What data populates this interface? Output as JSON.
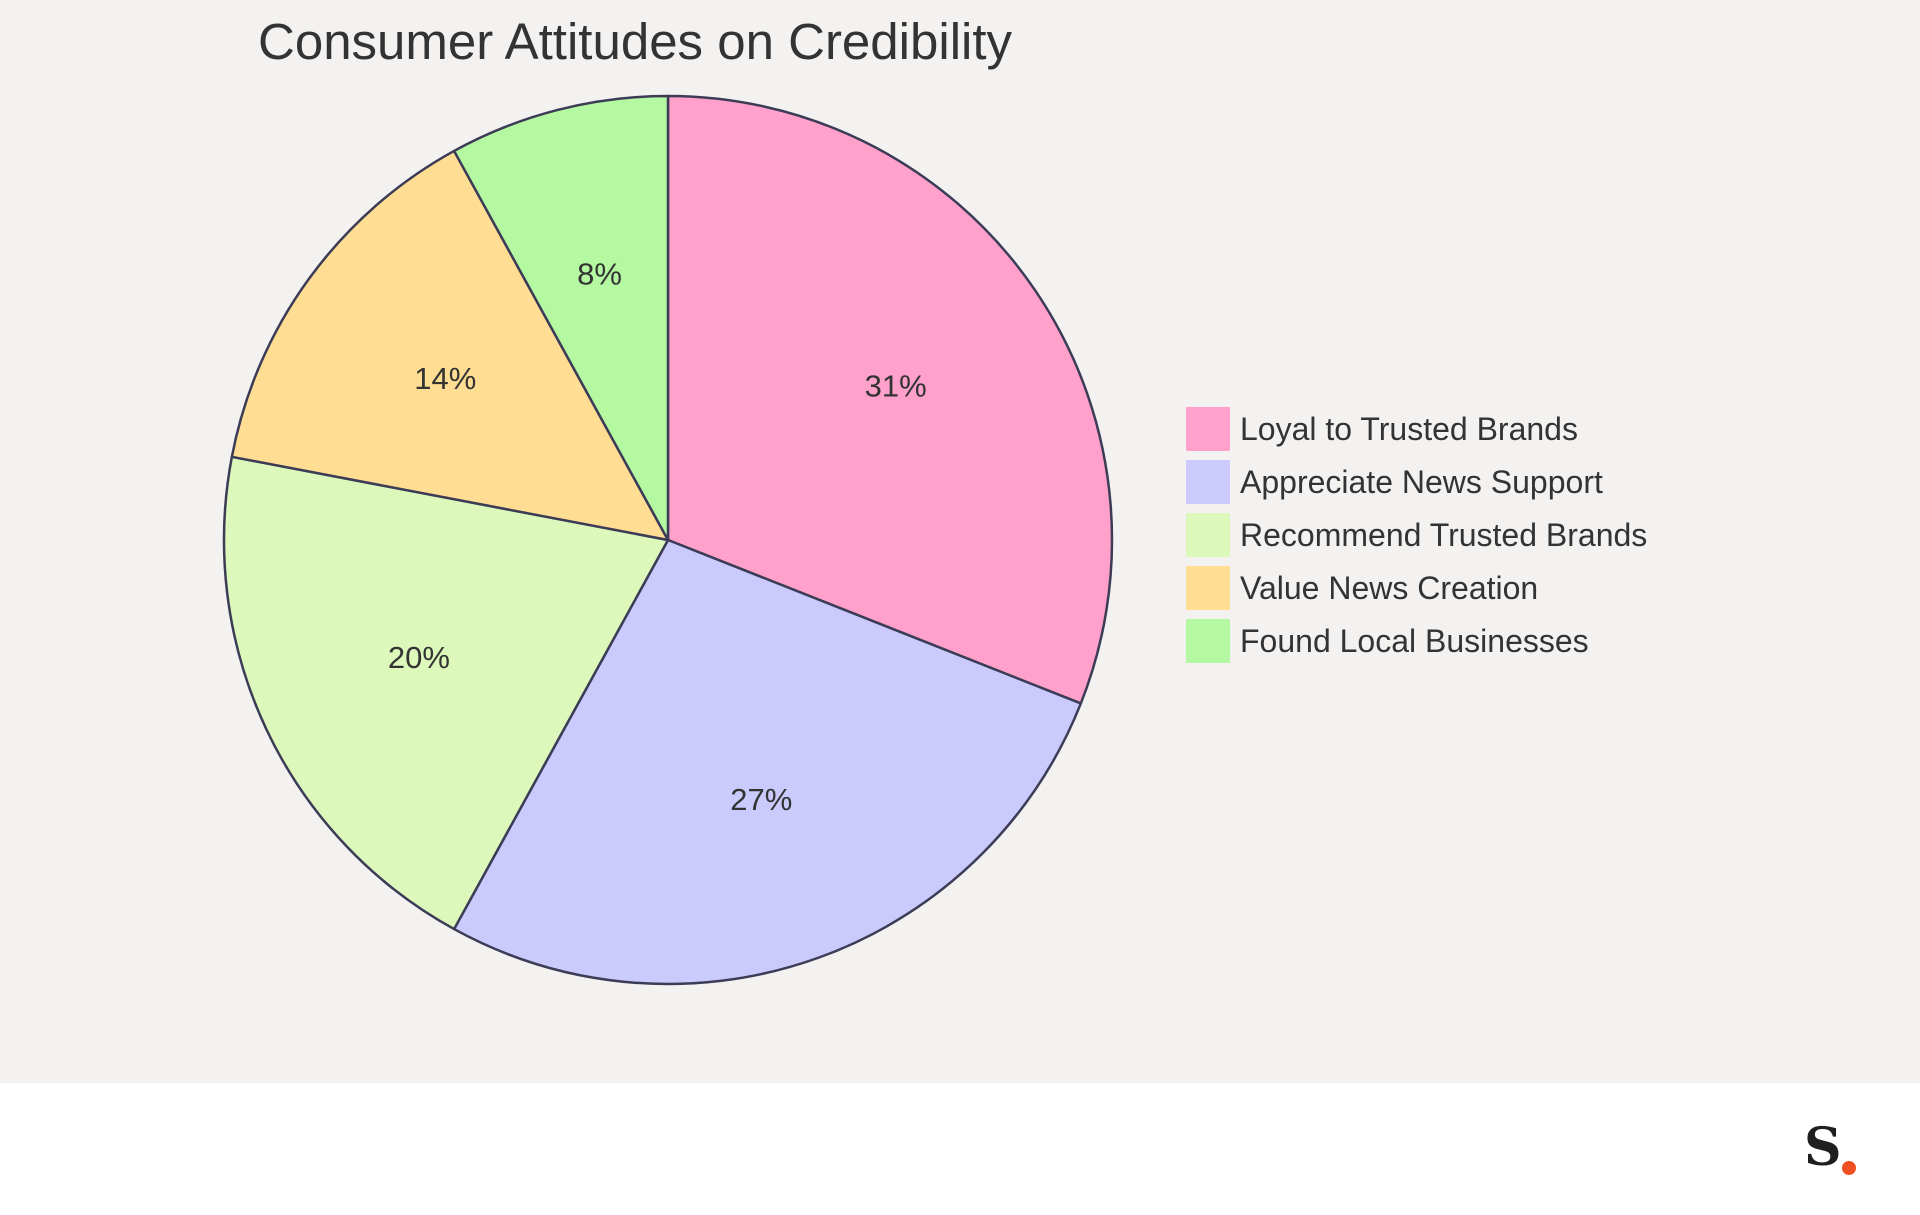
{
  "chart_data": {
    "type": "pie",
    "title": "Consumer Attitudes on Credibility",
    "categories": [
      "Loyal to Trusted Brands",
      "Appreciate News Support",
      "Recommend Trusted Brands",
      "Value News Creation",
      "Found Local Businesses"
    ],
    "values": [
      31,
      27,
      20,
      14,
      8
    ],
    "labels": [
      "31%",
      "27%",
      "20%",
      "14%",
      "8%"
    ],
    "colors": [
      "#ffa1cb",
      "#cacafd",
      "#dcf9bb",
      "#ffde93",
      "#b4f8a2"
    ],
    "outline_color": "#3c3c57",
    "direction": "clockwise",
    "start": "12 o'clock",
    "legend_position": "right"
  },
  "logo": {
    "letter": "S",
    "dot_color": "#f04e23"
  }
}
